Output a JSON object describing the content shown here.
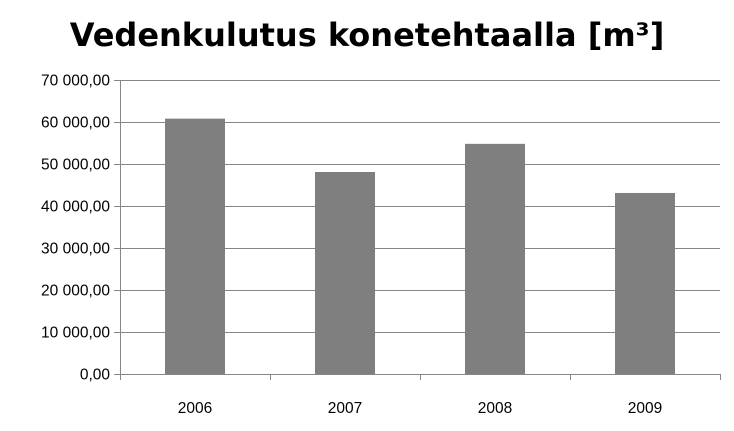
{
  "chart_data": {
    "type": "bar",
    "title": "Vedenkulutus konetehtaalla [m³]",
    "categories": [
      "2006",
      "2007",
      "2008",
      "2009"
    ],
    "values": [
      60800,
      48100,
      54800,
      43100
    ],
    "ylim": [
      0,
      70000
    ],
    "yticks": [
      "0,00",
      "10 000,00",
      "20 000,00",
      "30 000,00",
      "40 000,00",
      "50 000,00",
      "60 000,00",
      "70 000,00"
    ],
    "grid": true,
    "legend": "none",
    "bar_color": "#7f7f7f"
  }
}
